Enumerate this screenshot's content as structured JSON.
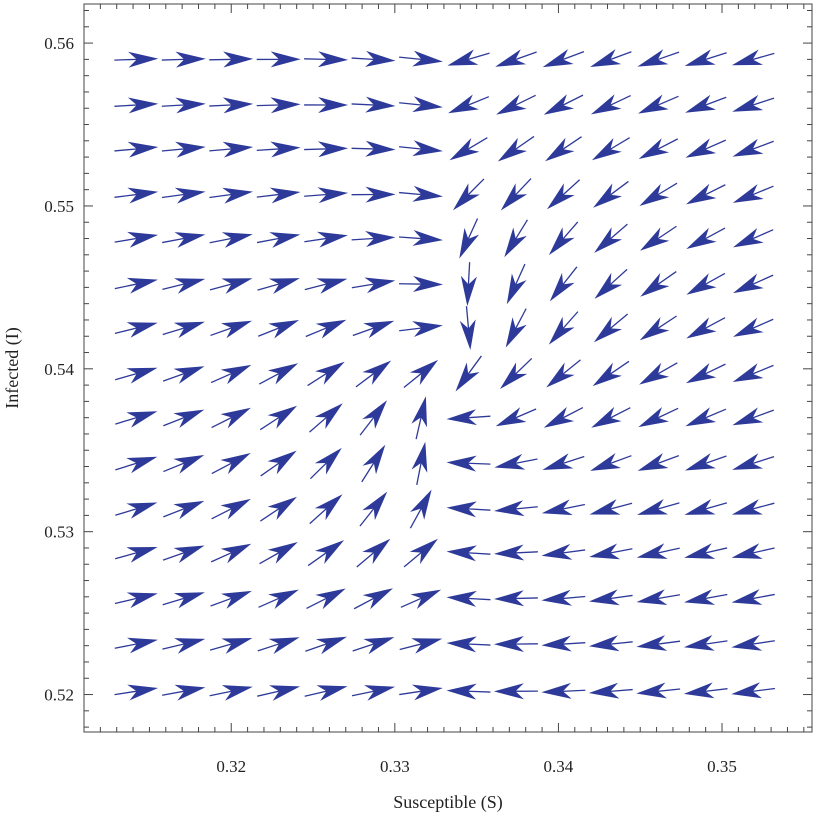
{
  "chart_data": {
    "type": "vector-field",
    "xlabel": "Susceptible (S)",
    "ylabel": "Infected (I)",
    "xlim": [
      0.311,
      0.3555
    ],
    "ylim": [
      0.5177,
      0.5624
    ],
    "xticks": [
      0.32,
      0.33,
      0.34,
      0.35
    ],
    "yticks": [
      0.52,
      0.53,
      0.54,
      0.55,
      0.56
    ],
    "xtick_labels": [
      "0.32",
      "0.33",
      "0.34",
      "0.35"
    ],
    "ytick_labels": [
      "0.52",
      "0.53",
      "0.54",
      "0.55",
      "0.56"
    ],
    "grid": false,
    "arrow_color": "#2e3a99",
    "equilibrium": [
      0.3335,
      0.5395
    ],
    "grid_S": [
      0.3142,
      0.3171,
      0.32,
      0.3229,
      0.3258,
      0.3287,
      0.3316,
      0.3345,
      0.3374,
      0.3403,
      0.3432,
      0.3461,
      0.349,
      0.3519
    ],
    "grid_I": [
      0.5202,
      0.5231,
      0.5259,
      0.5287,
      0.5314,
      0.5342,
      0.537,
      0.5397,
      0.5425,
      0.5452,
      0.548,
      0.5507,
      0.5535,
      0.5562,
      0.559
    ]
  }
}
